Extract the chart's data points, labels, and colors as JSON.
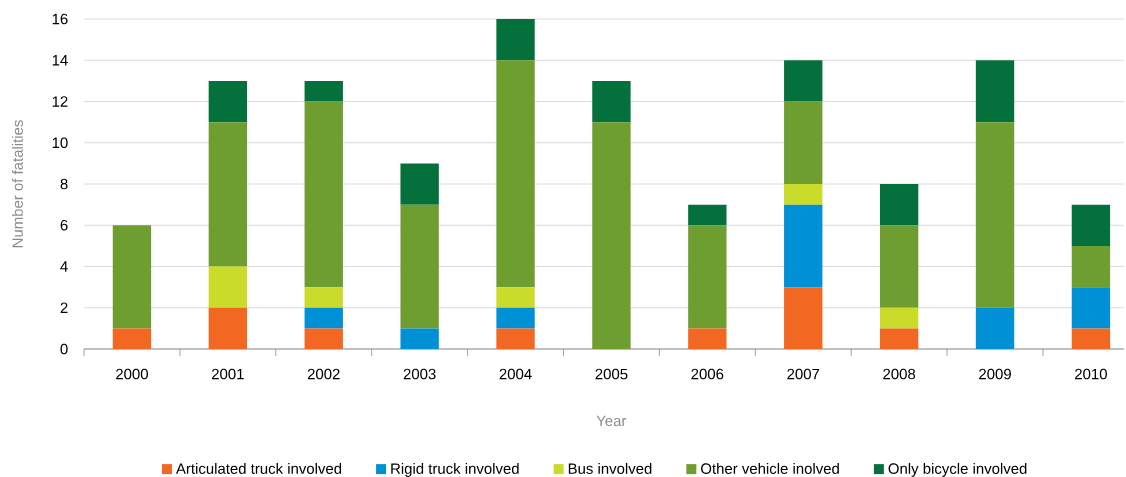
{
  "chart_data": {
    "type": "bar",
    "stacked": true,
    "xlabel": "Year",
    "ylabel": "Number of fatalities",
    "categories": [
      "2000",
      "2001",
      "2002",
      "2003",
      "2004",
      "2005",
      "2006",
      "2007",
      "2008",
      "2009",
      "2010"
    ],
    "series": [
      {
        "name": "Articulated truck involved",
        "color": "#f26722",
        "values": [
          1,
          2,
          1,
          0,
          1,
          0,
          1,
          3,
          1,
          0,
          1
        ]
      },
      {
        "name": "Rigid truck involved",
        "color": "#0090d6",
        "values": [
          0,
          0,
          1,
          1,
          1,
          0,
          0,
          4,
          0,
          2,
          2
        ]
      },
      {
        "name": "Bus involved",
        "color": "#cbdb2a",
        "values": [
          0,
          2,
          1,
          0,
          1,
          0,
          0,
          1,
          1,
          0,
          0
        ]
      },
      {
        "name": "Other vehicle inolved",
        "color": "#6e9e30",
        "values": [
          5,
          7,
          9,
          6,
          11,
          11,
          5,
          4,
          4,
          9,
          2
        ]
      },
      {
        "name": "Only bicycle involved",
        "color": "#04703b",
        "values": [
          0,
          2,
          1,
          2,
          2,
          2,
          1,
          2,
          2,
          3,
          2
        ]
      }
    ],
    "ylim": [
      0,
      16
    ],
    "yticks": [
      0,
      2,
      4,
      6,
      8,
      10,
      12,
      14,
      16
    ],
    "grid": "y",
    "legend": "bottom"
  }
}
